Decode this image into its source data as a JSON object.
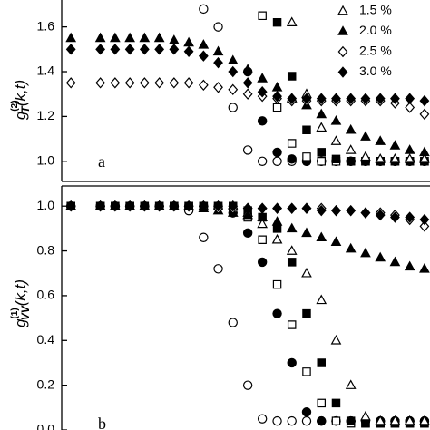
{
  "chart_data": [
    {
      "type": "scatter",
      "panel_label": "a",
      "xscale": "log",
      "xlim": [
        1,
        10000
      ],
      "ylim": [
        0.91,
        1.72
      ],
      "yticks": [
        {
          "value": 1,
          "label": "1.0"
        },
        1.2,
        1.4,
        1.6
      ],
      "ylabel_parts": [
        {
          "text": "g"
        },
        {
          "text": "(2)",
          "pos": "sup"
        },
        {
          "text": "T",
          "pos": "sub"
        },
        {
          "text": "(k,t)"
        }
      ],
      "legend": "upper right",
      "x": [
        1.26,
        1.82,
        2.63,
        3.8,
        5.5,
        7.94,
        11.5,
        16.6,
        24,
        34.7,
        50.1,
        72.4,
        105,
        151,
        219,
        316,
        457,
        661,
        955,
        1380,
        1995,
        2884,
        4169,
        6026,
        8710
      ],
      "series": [
        {
          "marker": "circle",
          "filled": false,
          "color": "#000000",
          "values": [
            null,
            null,
            null,
            null,
            null,
            null,
            null,
            null,
            null,
            1.68,
            1.6,
            1.24,
            1.05,
            1,
            1,
            1,
            1,
            1,
            1,
            1,
            1,
            1,
            1,
            1,
            1
          ]
        },
        {
          "marker": "circle",
          "filled": true,
          "color": "#000000",
          "values": [
            null,
            null,
            null,
            null,
            null,
            null,
            null,
            null,
            null,
            null,
            null,
            null,
            1.4,
            1.18,
            1.04,
            1.01,
            1,
            1,
            1,
            1,
            1,
            1,
            1,
            1,
            1
          ]
        },
        {
          "marker": "square",
          "filled": false,
          "color": "#000000",
          "values": [
            null,
            null,
            null,
            null,
            null,
            null,
            null,
            null,
            null,
            null,
            null,
            null,
            null,
            1.65,
            1.24,
            1.08,
            1.02,
            1,
            1,
            1,
            1,
            1,
            1,
            1,
            1
          ]
        },
        {
          "marker": "square",
          "filled": true,
          "color": "#000000",
          "values": [
            null,
            null,
            null,
            null,
            null,
            null,
            null,
            null,
            null,
            null,
            null,
            null,
            null,
            null,
            1.62,
            1.38,
            1.14,
            1.04,
            1.01,
            1,
            1,
            1,
            1,
            1,
            1
          ]
        },
        {
          "name": "1.5 %",
          "marker": "triangle",
          "filled": false,
          "color": "#000000",
          "values": [
            null,
            null,
            null,
            null,
            null,
            null,
            null,
            null,
            null,
            null,
            null,
            null,
            null,
            null,
            null,
            1.62,
            1.3,
            1.15,
            1.09,
            1.05,
            1.02,
            1.01,
            1.01,
            1.01,
            1.01
          ]
        },
        {
          "name": "2.0 %",
          "marker": "triangle",
          "filled": true,
          "color": "#000000",
          "values": [
            1.55,
            null,
            1.55,
            1.55,
            1.55,
            1.55,
            1.55,
            1.54,
            1.53,
            1.52,
            1.49,
            1.45,
            1.41,
            1.37,
            1.33,
            1.28,
            1.25,
            1.21,
            1.18,
            1.14,
            1.11,
            1.09,
            1.07,
            1.05,
            1.04
          ]
        },
        {
          "name": "2.5 %",
          "marker": "diamond",
          "filled": false,
          "color": "#000000",
          "values": [
            1.35,
            null,
            1.35,
            1.35,
            1.35,
            1.35,
            1.35,
            1.35,
            1.35,
            1.34,
            1.33,
            1.32,
            1.3,
            1.29,
            1.28,
            1.27,
            1.27,
            1.27,
            1.27,
            1.27,
            1.27,
            1.27,
            1.26,
            1.24,
            1.21
          ]
        },
        {
          "name": "3.0 %",
          "marker": "diamond",
          "filled": true,
          "color": "#000000",
          "values": [
            1.5,
            null,
            1.5,
            1.5,
            1.5,
            1.5,
            1.5,
            1.5,
            1.49,
            1.47,
            1.44,
            1.4,
            1.35,
            1.31,
            1.29,
            1.28,
            1.28,
            1.28,
            1.28,
            1.28,
            1.28,
            1.28,
            1.28,
            1.28,
            1.27
          ]
        }
      ]
    },
    {
      "type": "scatter",
      "panel_label": "b",
      "xscale": "log",
      "xlim": [
        1,
        10000
      ],
      "ylim": [
        0,
        1.09
      ],
      "yticks": [
        {
          "value": 0,
          "label": "0.0"
        },
        0.2,
        0.4,
        0.6,
        0.8,
        {
          "value": 1,
          "label": "1.0"
        }
      ],
      "ylabel_parts": [
        {
          "text": "g"
        },
        {
          "text": "(1)",
          "pos": "sup"
        },
        {
          "text": "VV",
          "pos": "sub"
        },
        {
          "text": "(k,t)"
        }
      ],
      "x": [
        1.26,
        1.82,
        2.63,
        3.8,
        5.5,
        7.94,
        11.5,
        16.6,
        24,
        34.7,
        50.1,
        72.4,
        105,
        151,
        219,
        316,
        457,
        661,
        955,
        1380,
        1995,
        2884,
        4169,
        6026,
        8710
      ],
      "series": [
        {
          "marker": "circle",
          "filled": false,
          "color": "#000000",
          "values": [
            1,
            null,
            1,
            1,
            1,
            1,
            1,
            1,
            0.98,
            0.86,
            0.72,
            0.48,
            0.2,
            0.05,
            0.04,
            0.04,
            0.04,
            0.04,
            0.04,
            0.04,
            0.04,
            0.04,
            0.04,
            0.04,
            0.04
          ]
        },
        {
          "marker": "circle",
          "filled": true,
          "color": "#000000",
          "values": [
            1,
            null,
            1,
            1,
            1,
            1,
            1,
            1,
            1,
            1,
            1,
            0.97,
            0.88,
            0.75,
            0.52,
            0.3,
            0.08,
            0.04,
            0.04,
            0.04,
            0.04,
            0.04,
            0.04,
            0.04,
            0.04
          ]
        },
        {
          "marker": "square",
          "filled": false,
          "color": "#000000",
          "values": [
            1,
            null,
            1,
            1,
            1,
            1,
            1,
            1,
            1,
            1,
            1,
            0.99,
            0.95,
            0.85,
            0.65,
            0.47,
            0.26,
            0.12,
            0.04,
            0.03,
            0.03,
            0.03,
            0.03,
            0.03,
            0.03
          ]
        },
        {
          "marker": "square",
          "filled": true,
          "color": "#000000",
          "values": [
            1,
            null,
            1,
            1,
            1,
            1,
            1,
            1,
            1,
            1,
            1,
            1,
            0.98,
            0.95,
            0.9,
            0.75,
            0.52,
            0.3,
            0.12,
            0.04,
            0.03,
            0.03,
            0.03,
            0.03,
            0.03
          ]
        },
        {
          "marker": "triangle",
          "filled": false,
          "color": "#000000",
          "values": [
            1,
            null,
            1,
            1,
            1,
            1,
            1,
            1,
            1,
            1,
            1,
            1,
            0.97,
            0.92,
            0.85,
            0.8,
            0.7,
            0.58,
            0.4,
            0.2,
            0.06,
            0.04,
            0.04,
            0.04,
            0.04
          ]
        },
        {
          "marker": "triangle",
          "filled": true,
          "color": "#000000",
          "values": [
            1,
            null,
            1,
            1,
            1,
            1,
            1,
            1,
            1,
            0.99,
            0.98,
            0.97,
            0.96,
            0.95,
            0.93,
            0.9,
            0.88,
            0.86,
            0.84,
            0.81,
            0.79,
            0.77,
            0.75,
            0.73,
            0.72
          ]
        },
        {
          "marker": "diamond",
          "filled": false,
          "color": "#000000",
          "values": [
            1,
            null,
            1,
            1,
            1,
            1,
            1,
            1,
            1,
            1,
            0.99,
            0.99,
            0.99,
            0.99,
            0.99,
            0.99,
            0.99,
            0.99,
            0.98,
            0.98,
            0.97,
            0.97,
            0.96,
            0.94,
            0.91
          ]
        },
        {
          "marker": "diamond",
          "filled": true,
          "color": "#000000",
          "values": [
            1,
            null,
            1,
            1,
            1,
            1,
            1,
            1,
            1,
            1,
            1,
            1,
            0.99,
            0.99,
            0.99,
            0.99,
            0.99,
            0.98,
            0.98,
            0.98,
            0.97,
            0.96,
            0.95,
            0.95,
            0.94
          ]
        }
      ]
    }
  ]
}
